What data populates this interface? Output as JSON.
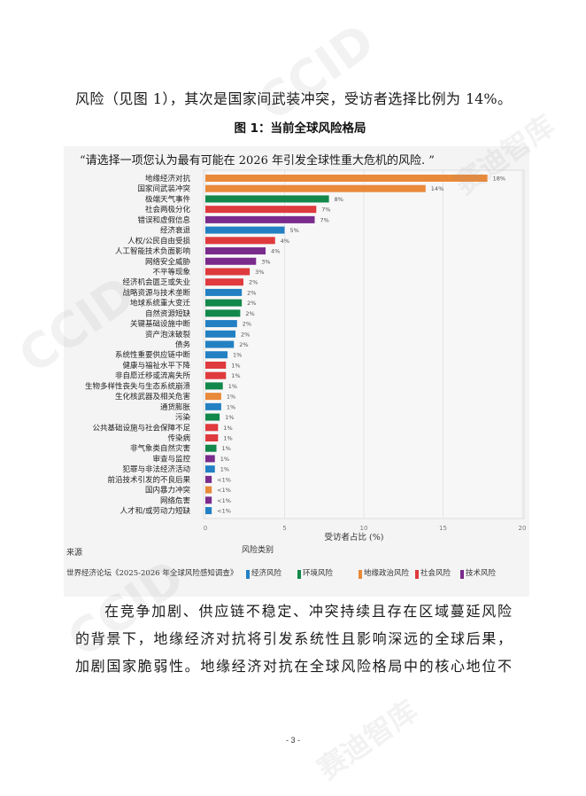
{
  "document": {
    "intro_line": "风险（见图 1），其次是国家间武装冲突，受访者选择比例为 14%。",
    "body_lines": [
      "在竞争加剧、供应链不稳定、冲突持续且存在区域蔓延风险",
      "的背景下，地缘经济对抗将引发系统性且影响深远的全球后果，",
      "加剧国家脆弱性。地缘经济对抗在全球风险格局中的核心地位不"
    ],
    "page_number": "- 3 -"
  },
  "watermark": {
    "logo": "CCID",
    "name": "赛迪智库"
  },
  "chart_data": {
    "type": "bar",
    "orientation": "horizontal",
    "title": "图 1：当前全球风险格局",
    "question": "“请选择一项您认为最有可能在 2026 年引发全球性重大危机的风险. ”",
    "categories": [
      "地缘经济对抗",
      "国家间武装冲突",
      "极端天气事件",
      "社会两极分化",
      "错误和虚假信息",
      "经济衰退",
      "人权/公民自由受损",
      "人工智能技术负面影响",
      "网络安全威胁",
      "不平等现象",
      "经济机会匮乏或失业",
      "战略资源与技术垄断",
      "地球系统重大变迁",
      "自然资源短缺",
      "关键基础设施中断",
      "资产泡沫破裂",
      "债务",
      "系统性重要供应链中断",
      "健康与福祉水平下降",
      "非自愿迁移或流离失所",
      "生物多样性丧失与生态系统崩溃",
      "生化核武器及相关危害",
      "通货膨胀",
      "污染",
      "公共基础设施与社会保障不足",
      "传染病",
      "非气象类自然灾害",
      "审查与监控",
      "犯罪与非法经济活动",
      "前沿技术引发的不良后果",
      "国内暴力冲突",
      "网络危害",
      "人才和/或劳动力短缺"
    ],
    "values": [
      17.8,
      13.9,
      7.8,
      7.0,
      6.9,
      5.0,
      4.4,
      3.8,
      3.2,
      2.8,
      2.4,
      2.3,
      2.3,
      2.2,
      2.0,
      1.9,
      1.8,
      1.4,
      1.3,
      1.3,
      1.1,
      1.0,
      1.0,
      0.9,
      0.8,
      0.8,
      0.7,
      0.6,
      0.6,
      0.4,
      0.4,
      0.4,
      0.4
    ],
    "data_labels": [
      "18%",
      "14%",
      "8%",
      "7%",
      "7%",
      "5%",
      "4%",
      "4%",
      "3%",
      "3%",
      "2%",
      "2%",
      "2%",
      "2%",
      "2%",
      "2%",
      "2%",
      "1%",
      "1%",
      "1%",
      "1%",
      "1%",
      "1%",
      "1%",
      "1%",
      "1%",
      "1%",
      "1%",
      "1%",
      "<1%",
      "<1%",
      "<1%",
      "<1%"
    ],
    "risk_category_index": [
      2,
      2,
      1,
      3,
      4,
      0,
      3,
      4,
      4,
      3,
      3,
      0,
      1,
      1,
      0,
      0,
      0,
      0,
      3,
      3,
      1,
      2,
      0,
      1,
      3,
      3,
      1,
      4,
      0,
      4,
      2,
      4,
      0
    ],
    "xlabel": "受访者占比 (%)",
    "xlim": [
      0,
      20
    ],
    "xticks": [
      "0",
      "5",
      "10",
      "15",
      "20"
    ],
    "grid": true,
    "legend": {
      "title": "风险类别",
      "placement": "bottom",
      "items": [
        {
          "name": "经济风险",
          "color": "#2280c3"
        },
        {
          "name": "环境风险",
          "color": "#12884a"
        },
        {
          "name": "地缘政治风险",
          "color": "#e9893a"
        },
        {
          "name": "社会风险",
          "color": "#df3a3d"
        },
        {
          "name": "技术风险",
          "color": "#7a2b8c"
        }
      ]
    },
    "source_label": "来源",
    "source": "世界经济论坛《2025-2026 年全球风险感知调查》"
  }
}
